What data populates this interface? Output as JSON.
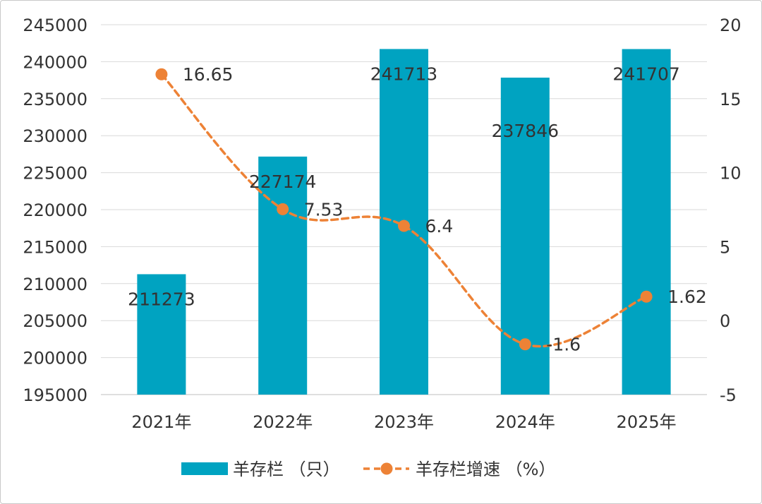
{
  "chart_data": {
    "type": "bar",
    "categories": [
      "2021年",
      "2022年",
      "2023年",
      "2024年",
      "2025年"
    ],
    "series": [
      {
        "name": "羊存栏 （只）",
        "type": "bar",
        "axis": "left",
        "values": [
          211273,
          227174,
          241713,
          237846,
          241707
        ],
        "color": "#00A3C1"
      },
      {
        "name": "羊存栏增速 （%）",
        "type": "line",
        "axis": "right",
        "values": [
          16.65,
          7.53,
          6.4,
          -1.6,
          1.62
        ],
        "color": "#ED8236",
        "line_style": "dashed",
        "smooth": true
      }
    ],
    "y_left": {
      "ylim": [
        195000,
        245000
      ],
      "ticks": [
        "195000",
        "200000",
        "205000",
        "210000",
        "215000",
        "220000",
        "225000",
        "230000",
        "235000",
        "240000",
        "245000"
      ]
    },
    "y_right": {
      "ylim": [
        -5,
        20
      ],
      "ticks": [
        "-5",
        "0",
        "5",
        "10",
        "15",
        "20"
      ]
    },
    "bar_labels": [
      "211273",
      "227174",
      "241713",
      "237846",
      "241707"
    ],
    "line_labels": [
      "16.65",
      "7.53",
      "6.4",
      "-1.6",
      "1.62"
    ],
    "grid": true,
    "legend_position": "bottom"
  }
}
